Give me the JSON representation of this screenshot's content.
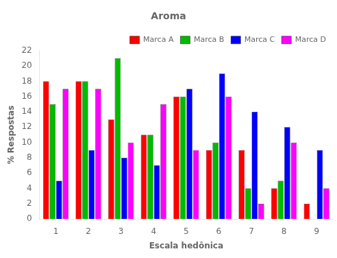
{
  "chart_data": {
    "type": "bar",
    "title": "Aroma",
    "xlabel": "Escala hedônica",
    "ylabel": "% Respostas",
    "categories": [
      1,
      2,
      3,
      4,
      5,
      6,
      7,
      8,
      9
    ],
    "series": [
      {
        "name": "Marca A",
        "color": "#ff0000",
        "values": [
          18,
          18,
          13,
          11,
          16,
          9,
          9,
          4,
          2
        ]
      },
      {
        "name": "Marca B",
        "color": "#00bb00",
        "values": [
          15,
          18,
          21,
          11,
          16,
          10,
          4,
          5,
          0
        ]
      },
      {
        "name": "Marca C",
        "color": "#0000ff",
        "values": [
          5,
          9,
          8,
          7,
          17,
          19,
          14,
          12,
          9
        ]
      },
      {
        "name": "Marca D",
        "color": "#ff00ff",
        "values": [
          17,
          17,
          10,
          15,
          9,
          16,
          2,
          10,
          4
        ]
      }
    ],
    "ylim": [
      0,
      22
    ],
    "yticks": [
      0,
      2,
      4,
      6,
      8,
      10,
      12,
      14,
      16,
      18,
      20,
      22
    ],
    "grid": false,
    "legend": "upper right"
  }
}
